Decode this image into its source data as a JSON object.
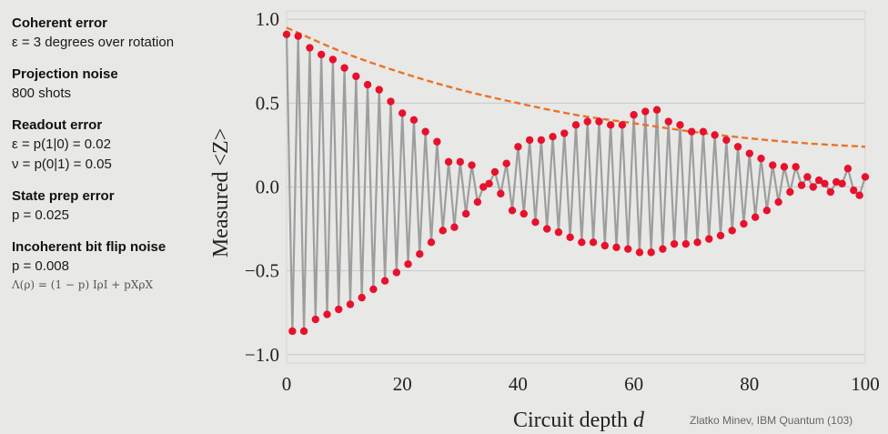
{
  "sidebar": {
    "blocks": [
      {
        "title": "Coherent error",
        "lines": [
          "ε = 3 degrees over rotation"
        ],
        "math": ""
      },
      {
        "title": "Projection noise",
        "lines": [
          "800 shots"
        ],
        "math": ""
      },
      {
        "title": "Readout error",
        "lines": [
          "ε = p(1|0) = 0.02",
          "ν = p(0|1) = 0.05"
        ],
        "math": ""
      },
      {
        "title": "State prep error",
        "lines": [
          "p = 0.025"
        ],
        "math": ""
      },
      {
        "title": "Incoherent bit flip noise",
        "lines": [
          "p = 0.008"
        ],
        "math": "Λ(ρ) = (1 − p) IρI + pXρX"
      }
    ]
  },
  "credit": "Zlatko Minev, IBM Quantum (103)",
  "colors": {
    "points": "#e8112d",
    "line": "#9e9e9e",
    "envelope": "#e8742a",
    "grid": "#c9c9c9",
    "background": "#e8e8e6"
  },
  "chart_data": {
    "type": "scatter",
    "xlabel": "Circuit depth d",
    "ylabel": "Measured <Z>",
    "xlim": [
      0,
      100
    ],
    "ylim": [
      -1.05,
      1.05
    ],
    "xticks": [
      0,
      20,
      40,
      60,
      80,
      100
    ],
    "xtick_labels": [
      "0",
      "20",
      "40",
      "60",
      "80",
      "100"
    ],
    "yticks": [
      1.0,
      0.5,
      0.0,
      -0.5,
      -1.0
    ],
    "ytick_labels": [
      "1.0",
      "0.5",
      "0.0",
      "−0.5",
      "−1.0"
    ],
    "grid": "horizontal",
    "envelope": {
      "style": "dashed",
      "x": [
        0,
        10,
        20,
        30,
        40,
        50,
        60,
        70,
        80,
        90,
        100
      ],
      "y": [
        0.95,
        0.8,
        0.68,
        0.58,
        0.5,
        0.43,
        0.38,
        0.33,
        0.29,
        0.26,
        0.24
      ]
    },
    "series": [
      {
        "x": [
          0,
          1,
          2,
          3,
          4,
          5,
          6,
          7,
          8,
          9,
          10,
          11,
          12,
          13,
          14,
          15,
          16,
          17,
          18,
          19,
          20,
          21,
          22,
          23,
          24,
          25,
          26,
          27,
          28,
          29,
          30,
          31,
          32,
          33,
          34,
          35,
          36,
          37,
          38,
          39,
          40,
          41,
          42,
          43,
          44,
          45,
          46,
          47,
          48,
          49,
          50,
          51,
          52,
          53,
          54,
          55,
          56,
          57,
          58,
          59,
          60,
          61,
          62,
          63,
          64,
          65,
          66,
          67,
          68,
          69,
          70,
          71,
          72,
          73,
          74,
          75,
          76,
          77,
          78,
          79,
          80,
          81,
          82,
          83,
          84,
          85,
          86,
          87,
          88,
          89,
          90,
          91,
          92,
          93,
          94,
          95,
          96,
          97,
          98,
          99,
          100
        ],
        "y": [
          0.91,
          -0.86,
          0.9,
          -0.86,
          0.83,
          -0.79,
          0.79,
          -0.76,
          0.76,
          -0.73,
          0.71,
          -0.7,
          0.66,
          -0.66,
          0.61,
          -0.61,
          0.58,
          -0.56,
          0.51,
          -0.51,
          0.44,
          -0.46,
          0.4,
          -0.4,
          0.33,
          -0.33,
          0.27,
          -0.26,
          0.15,
          -0.24,
          0.15,
          -0.16,
          0.13,
          -0.09,
          0.0,
          0.02,
          0.09,
          -0.04,
          0.14,
          -0.14,
          0.24,
          -0.16,
          0.28,
          -0.21,
          0.28,
          -0.25,
          0.3,
          -0.27,
          0.32,
          -0.3,
          0.37,
          -0.33,
          0.39,
          -0.33,
          0.39,
          -0.35,
          0.37,
          -0.36,
          0.37,
          -0.37,
          0.43,
          -0.39,
          0.45,
          -0.39,
          0.46,
          -0.37,
          0.39,
          -0.34,
          0.37,
          -0.34,
          0.33,
          -0.33,
          0.33,
          -0.31,
          0.31,
          -0.29,
          0.28,
          -0.26,
          0.24,
          -0.22,
          0.2,
          -0.18,
          0.17,
          -0.14,
          0.13,
          -0.09,
          0.12,
          -0.03,
          0.12,
          0.01,
          0.06,
          0.0,
          0.04,
          0.02,
          -0.03,
          0.03,
          0.02,
          0.11,
          -0.02,
          -0.05,
          0.06
        ]
      }
    ]
  }
}
